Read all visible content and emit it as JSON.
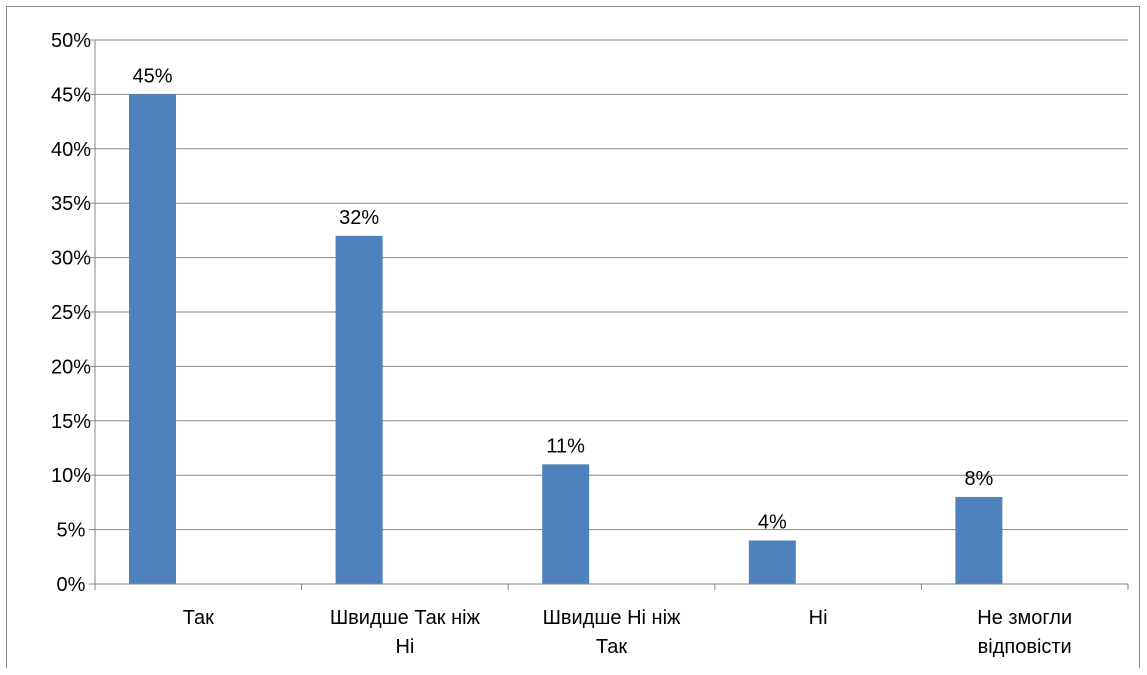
{
  "chart_data": {
    "type": "bar",
    "categories": [
      [
        "Так"
      ],
      [
        "Швидше Так ніж",
        "Ні"
      ],
      [
        "Швидше Ні ніж",
        "Так"
      ],
      [
        "Ні"
      ],
      [
        "Не змогли",
        "відповісти"
      ]
    ],
    "values": [
      45,
      32,
      11,
      4,
      8
    ],
    "data_labels": [
      "45%",
      "32%",
      "11%",
      "4%",
      "8%"
    ],
    "y_ticks": [
      "0%",
      "5%",
      "10%",
      "15%",
      "20%",
      "25%",
      "30%",
      "35%",
      "40%",
      "45%",
      "50%"
    ],
    "ylim": [
      0,
      50
    ],
    "ytick_step": 5,
    "grid": true,
    "legend": "none",
    "title": "",
    "xlabel": "",
    "ylabel": "",
    "colors": {
      "bar": "#4f81bd",
      "grid": "#868686",
      "axis": "#868686"
    }
  }
}
